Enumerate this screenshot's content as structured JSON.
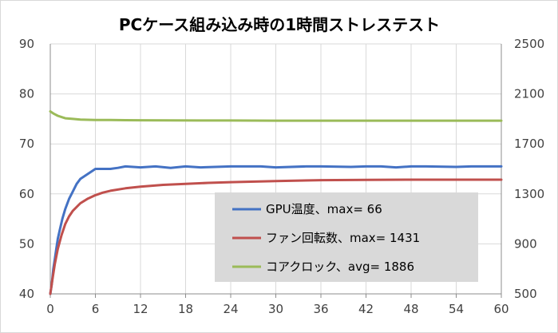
{
  "chart_data": {
    "type": "line",
    "title": "PCケース組み込み時の1時間ストレステスト",
    "xlabel": "",
    "ylabel_left": "",
    "ylabel_right": "",
    "x_ticks": [
      0,
      6,
      12,
      18,
      24,
      30,
      36,
      42,
      48,
      54,
      60
    ],
    "xlim": [
      0,
      60
    ],
    "ylim_left": [
      40,
      90
    ],
    "y_ticks_left": [
      40,
      50,
      60,
      70,
      80,
      90
    ],
    "ylim_right": [
      500,
      2500
    ],
    "y_ticks_right": [
      500,
      900,
      1300,
      1700,
      2100,
      2500
    ],
    "grid": true,
    "legend_placement": "bottom-center",
    "series": [
      {
        "name": "GPU温度、max= 66",
        "axis": "left",
        "color": "#4472c4",
        "x": [
          0,
          0.2,
          0.4,
          0.6,
          0.8,
          1,
          1.3,
          1.6,
          2,
          2.5,
          3,
          3.5,
          4,
          4.5,
          5,
          5.5,
          6,
          7,
          8,
          9,
          10,
          12,
          14,
          16,
          18,
          20,
          24,
          28,
          30,
          34,
          36,
          40,
          42,
          44,
          46,
          48,
          50,
          54,
          56,
          60
        ],
        "values": [
          40,
          42,
          45,
          47,
          49,
          51,
          53,
          55,
          57,
          59,
          60.5,
          62,
          63,
          63.5,
          64,
          64.5,
          65,
          65,
          65,
          65.2,
          65.5,
          65.3,
          65.5,
          65.2,
          65.5,
          65.3,
          65.5,
          65.5,
          65.3,
          65.5,
          65.5,
          65.4,
          65.5,
          65.5,
          65.3,
          65.5,
          65.5,
          65.4,
          65.5,
          65.5
        ]
      },
      {
        "name": "ファン回転数、max= 1431",
        "axis": "right",
        "color": "#c0504d",
        "x": [
          0,
          0.3,
          0.6,
          1,
          1.5,
          2,
          2.5,
          3,
          4,
          5,
          6,
          7,
          8,
          10,
          12,
          15,
          18,
          21,
          24,
          30,
          36,
          42,
          48,
          54,
          60
        ],
        "values": [
          500,
          620,
          740,
          860,
          970,
          1060,
          1120,
          1165,
          1225,
          1262,
          1290,
          1310,
          1325,
          1345,
          1358,
          1372,
          1380,
          1388,
          1394,
          1402,
          1410,
          1412,
          1414,
          1414,
          1414
        ]
      },
      {
        "name": "コアクロック、avg= 1886",
        "axis": "right",
        "color": "#9bbb59",
        "x": [
          0,
          0.5,
          1,
          1.5,
          2,
          3,
          4,
          5,
          6,
          8,
          10,
          12,
          16,
          20,
          24,
          30,
          36,
          42,
          48,
          54,
          60
        ],
        "values": [
          1960,
          1940,
          1925,
          1915,
          1905,
          1900,
          1895,
          1893,
          1892,
          1891,
          1890,
          1889,
          1888,
          1887,
          1887,
          1886,
          1886,
          1886,
          1886,
          1886,
          1886
        ]
      }
    ]
  }
}
